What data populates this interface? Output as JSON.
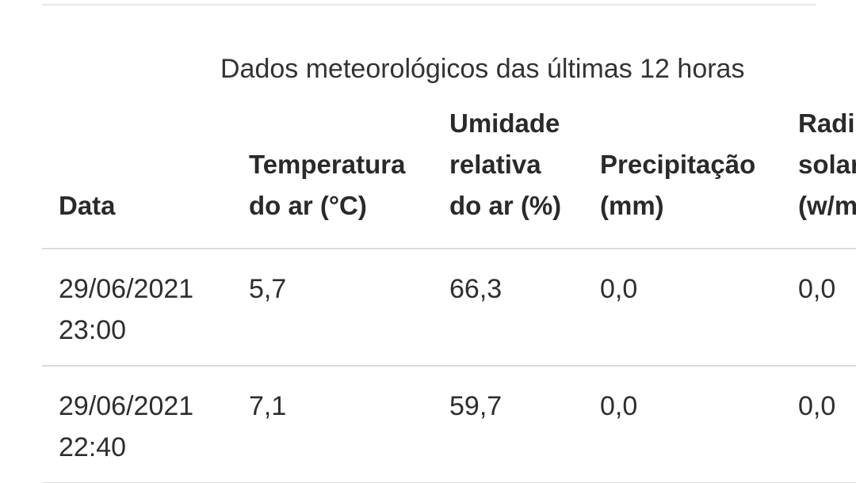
{
  "caption": "Dados meteorológicos das últimas 12 horas",
  "columns": [
    {
      "lines": [
        "Data"
      ]
    },
    {
      "lines": [
        "Temperatura",
        "do ar (°C)"
      ]
    },
    {
      "lines": [
        "Umidade",
        "relativa",
        "do ar (%)"
      ]
    },
    {
      "lines": [
        "Precipitação",
        "(mm)"
      ]
    },
    {
      "lines": [
        "Radi",
        "solar",
        "(w/m"
      ]
    }
  ],
  "rows": [
    {
      "date": "29/06/2021",
      "time": "23:00",
      "temperature": "5,7",
      "humidity": "66,3",
      "precipitation": "0,0",
      "radiation": "0,0"
    },
    {
      "date": "29/06/2021",
      "time": "22:40",
      "temperature": "7,1",
      "humidity": "59,7",
      "precipitation": "0,0",
      "radiation": "0,0"
    }
  ]
}
